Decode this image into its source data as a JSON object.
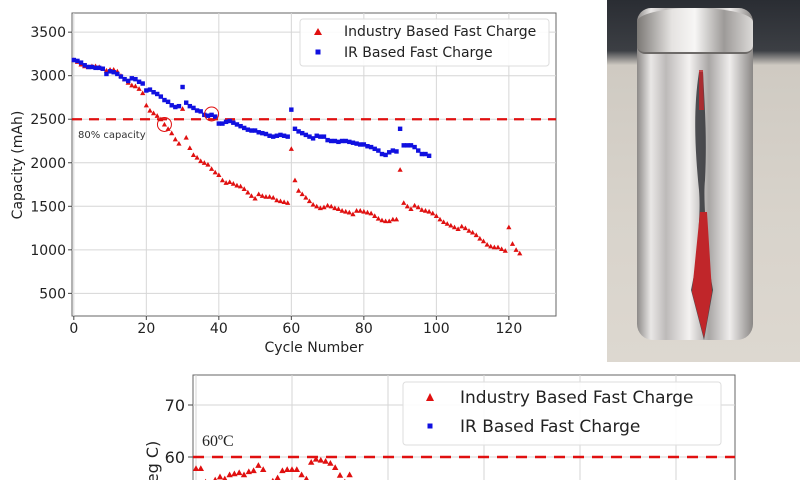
{
  "chart_data": [
    {
      "type": "scatter",
      "xlabel": "Cycle Number",
      "ylabel": "Capacity (mAh)",
      "xlim": [
        -0.5,
        133
      ],
      "ylim": [
        240,
        3720
      ],
      "xticks": [
        "0",
        "20",
        "40",
        "60",
        "80",
        "100",
        "120"
      ],
      "yticks": [
        "500",
        "1000",
        "1500",
        "2000",
        "2500",
        "3000",
        "3500"
      ],
      "grid": true,
      "legend_position": "top-right",
      "reference_line": {
        "y": 2500,
        "label": "80% capacity",
        "color": "#e01010",
        "style": "dashed"
      },
      "highlight_circles": [
        {
          "x": 25,
          "y": 2440
        },
        {
          "x": 38,
          "y": 2560
        }
      ],
      "series": [
        {
          "name": "Industry Based Fast Charge",
          "marker": "triangle",
          "color": "#e01010",
          "x_start": 0,
          "values": [
            3180,
            3160,
            3130,
            3110,
            3100,
            3110,
            3110,
            3100,
            3080,
            3060,
            3070,
            3070,
            3050,
            3000,
            2960,
            2920,
            2890,
            2880,
            2850,
            2800,
            2660,
            2600,
            2570,
            2540,
            2500,
            2440,
            2390,
            2340,
            2270,
            2220,
            2620,
            2290,
            2170,
            2090,
            2060,
            2020,
            2000,
            1980,
            1930,
            1890,
            1860,
            1800,
            1770,
            1780,
            1760,
            1740,
            1730,
            1700,
            1660,
            1620,
            1590,
            1640,
            1620,
            1610,
            1610,
            1600,
            1570,
            1560,
            1550,
            1540,
            2160,
            1800,
            1680,
            1640,
            1600,
            1560,
            1520,
            1500,
            1480,
            1490,
            1510,
            1500,
            1480,
            1470,
            1450,
            1440,
            1430,
            1410,
            1450,
            1450,
            1440,
            1430,
            1420,
            1390,
            1360,
            1340,
            1330,
            1330,
            1350,
            1350,
            1920,
            1540,
            1500,
            1470,
            1510,
            1490,
            1460,
            1450,
            1440,
            1420,
            1390,
            1350,
            1320,
            1300,
            1280,
            1260,
            1240,
            1270,
            1250,
            1220,
            1200,
            1170,
            1130,
            1100,
            1060,
            1040,
            1030,
            1030,
            1010,
            990,
            1260,
            1070,
            1000,
            960
          ]
        },
        {
          "name": "IR Based Fast Charge",
          "marker": "square",
          "color": "#1010e0",
          "x_start": 0,
          "values": [
            3180,
            3170,
            3150,
            3120,
            3100,
            3100,
            3090,
            3090,
            3080,
            3020,
            3050,
            3040,
            3020,
            2990,
            2960,
            2940,
            2970,
            2960,
            2930,
            2910,
            2830,
            2840,
            2810,
            2790,
            2760,
            2720,
            2700,
            2660,
            2640,
            2650,
            2870,
            2690,
            2650,
            2630,
            2600,
            2590,
            2550,
            2540,
            2550,
            2530,
            2450,
            2450,
            2470,
            2480,
            2460,
            2440,
            2420,
            2400,
            2380,
            2370,
            2370,
            2350,
            2340,
            2330,
            2310,
            2300,
            2310,
            2320,
            2310,
            2300,
            2610,
            2390,
            2360,
            2340,
            2320,
            2300,
            2280,
            2310,
            2300,
            2300,
            2260,
            2250,
            2250,
            2240,
            2250,
            2250,
            2240,
            2230,
            2220,
            2210,
            2210,
            2190,
            2180,
            2160,
            2140,
            2100,
            2090,
            2120,
            2140,
            2130,
            2390,
            2200,
            2200,
            2200,
            2180,
            2140,
            2100,
            2100,
            2080
          ]
        }
      ]
    },
    {
      "type": "scatter",
      "ylabel": "eg C)",
      "yticks": [
        "60",
        "70"
      ],
      "ylim_visible": [
        55.6,
        75.6
      ],
      "grid": true,
      "legend_position": "top-right",
      "reference_line": {
        "y": 60,
        "label": "60ºC",
        "color": "#e01010",
        "style": "dashed"
      },
      "series": [
        {
          "name": "Industry Based Fast Charge",
          "marker": "triangle",
          "color": "#e01010",
          "x_start": 0,
          "values": [
            57.8,
            57.8,
            55.2,
            55,
            55.6,
            56.2,
            55.8,
            56.6,
            56.8,
            57,
            56.6,
            57.2,
            57.4,
            58.4,
            57.6,
            55,
            55.4,
            56,
            57.4,
            57.6,
            57.6,
            57.6,
            56.6,
            55.8,
            59,
            59.6,
            59.4,
            59.2,
            58.8,
            58,
            56.5,
            55.2,
            56.6
          ]
        },
        {
          "name": "IR Based Fast Charge",
          "marker": "square",
          "color": "#1010e0",
          "values": []
        }
      ]
    }
  ],
  "photo": {
    "subject": "battery-cell-photo",
    "arrow_color": "#c0262a"
  }
}
